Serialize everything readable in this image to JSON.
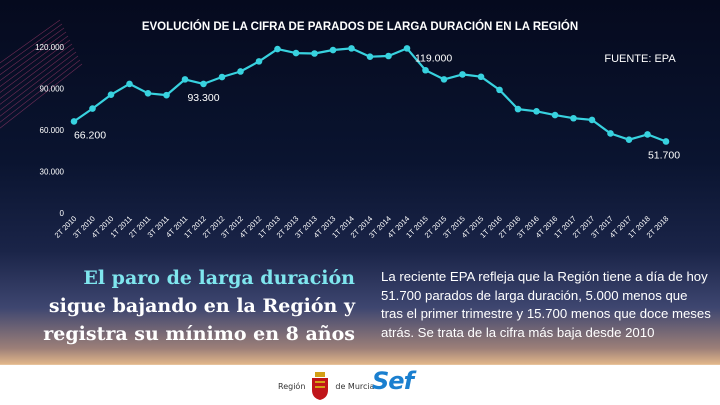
{
  "chart_data": {
    "type": "line",
    "title": "EVOLUCIÓN DE LA CIFRA DE PARADOS DE LARGA DURACIÓN EN LA REGIÓN",
    "source": "FUENTE: EPA",
    "color": "#38d2df",
    "ylim": [
      0,
      120000
    ],
    "yticks": [
      "0",
      "30.000",
      "60.000",
      "90.000",
      "120.000"
    ],
    "ytick_values": [
      0,
      30000,
      60000,
      90000,
      120000
    ],
    "grid": false,
    "categories": [
      "2T 2010",
      "3T 2010",
      "4T 2010",
      "1T 2011",
      "2T 2011",
      "3T 2011",
      "4T 2011",
      "1T 2012",
      "2T 2012",
      "3T 2012",
      "4T 2012",
      "1T 2013",
      "2T 2013",
      "3T 2013",
      "4T 2013",
      "1T 2014",
      "2T 2014",
      "3T 2014",
      "4T 2014",
      "1T 2015",
      "2T 2015",
      "3T 2015",
      "4T 2015",
      "1T 2016",
      "2T 2016",
      "3T 2016",
      "4T 2016",
      "1T 2017",
      "2T 2017",
      "3T 2017",
      "4T 2017",
      "1T 2018",
      "2T 2018"
    ],
    "values": [
      66200,
      75500,
      85500,
      93300,
      86500,
      85200,
      96600,
      93300,
      98300,
      102300,
      109600,
      118500,
      115600,
      115300,
      117800,
      119000,
      113000,
      113500,
      119000,
      103200,
      96600,
      100200,
      98500,
      89000,
      75100,
      73500,
      70800,
      68500,
      67300,
      57500,
      53000,
      56800,
      51700
    ],
    "data_labels": [
      {
        "index": 0,
        "text": "66.200",
        "pos": "below"
      },
      {
        "index": 7,
        "text": "93.300",
        "pos": "below"
      },
      {
        "index": 18,
        "text": "119.000",
        "pos": "right"
      },
      {
        "index": 32,
        "text": "51.700",
        "pos": "below"
      }
    ]
  },
  "headline": {
    "line1": "El paro de larga duración",
    "line2": "sigue bajando en la Región y",
    "line3": "registra su mínimo en 8 años"
  },
  "body": "La reciente EPA refleja que la Región tiene a día de hoy 51.700 parados de larga duración, 5.000 menos que tras el primer trimestre y 15.700 menos que doce meses atrás. Se trata de la cifra más baja desde 2010",
  "footer": {
    "logo1_text_left": "Región",
    "logo1_text_right": "de Murcia",
    "logo2_text": "Sef"
  }
}
